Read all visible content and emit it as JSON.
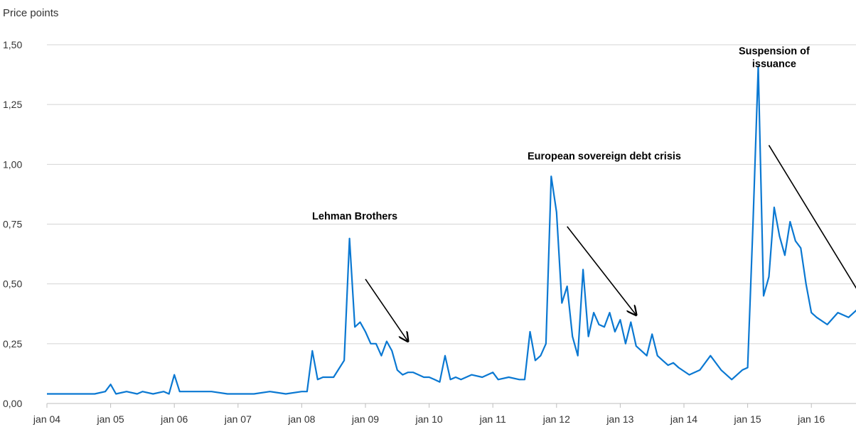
{
  "chart_data": {
    "type": "line",
    "ylabel": "Price points",
    "ylim": [
      0,
      1.5
    ],
    "yticks": [
      {
        "value": 0.0,
        "label": "0,00"
      },
      {
        "value": 0.25,
        "label": "0,25"
      },
      {
        "value": 0.5,
        "label": "0,50"
      },
      {
        "value": 0.75,
        "label": "0,75"
      },
      {
        "value": 1.0,
        "label": "1,00"
      },
      {
        "value": 1.25,
        "label": "1,25"
      },
      {
        "value": 1.5,
        "label": "1,50"
      }
    ],
    "xlim": [
      "2004-01",
      "2016-12"
    ],
    "xticks": [
      {
        "value": "2004-01",
        "label": "jan 04"
      },
      {
        "value": "2005-01",
        "label": "jan 05"
      },
      {
        "value": "2006-01",
        "label": "jan 06"
      },
      {
        "value": "2007-01",
        "label": "jan 07"
      },
      {
        "value": "2008-01",
        "label": "jan 08"
      },
      {
        "value": "2009-01",
        "label": "jan 09"
      },
      {
        "value": "2010-01",
        "label": "jan 10"
      },
      {
        "value": "2011-01",
        "label": "jan 11"
      },
      {
        "value": "2012-01",
        "label": "jan 12"
      },
      {
        "value": "2013-01",
        "label": "jan 13"
      },
      {
        "value": "2014-01",
        "label": "jan 14"
      },
      {
        "value": "2015-01",
        "label": "jan 15"
      },
      {
        "value": "2016-01",
        "label": "jan 16"
      }
    ],
    "grid": true,
    "line_color": "#0a78d2",
    "series": [
      {
        "x": [
          "2004-01",
          "2004-04",
          "2004-07",
          "2004-10",
          "2004-12",
          "2005-01",
          "2005-02",
          "2005-04",
          "2005-06",
          "2005-07",
          "2005-09",
          "2005-11",
          "2005-12",
          "2006-01",
          "2006-02",
          "2006-05",
          "2006-08",
          "2006-11",
          "2007-01",
          "2007-04",
          "2007-07",
          "2007-10",
          "2008-01",
          "2008-02",
          "2008-03",
          "2008-04",
          "2008-05",
          "2008-07",
          "2008-09",
          "2008-10",
          "2008-11",
          "2008-12",
          "2009-01",
          "2009-02",
          "2009-03",
          "2009-04",
          "2009-05",
          "2009-06",
          "2009-07",
          "2009-08",
          "2009-09",
          "2009-10",
          "2009-11",
          "2009-12",
          "2010-01",
          "2010-02",
          "2010-03",
          "2010-04",
          "2010-05",
          "2010-06",
          "2010-07",
          "2010-09",
          "2010-11",
          "2011-01",
          "2011-02",
          "2011-04",
          "2011-06",
          "2011-07",
          "2011-08",
          "2011-09",
          "2011-10",
          "2011-11",
          "2011-12",
          "2012-01",
          "2012-02",
          "2012-03",
          "2012-04",
          "2012-05",
          "2012-06",
          "2012-07",
          "2012-08",
          "2012-09",
          "2012-10",
          "2012-11",
          "2012-12",
          "2013-01",
          "2013-02",
          "2013-03",
          "2013-04",
          "2013-05",
          "2013-06",
          "2013-07",
          "2013-08",
          "2013-09",
          "2013-10",
          "2013-11",
          "2013-12",
          "2014-02",
          "2014-04",
          "2014-06",
          "2014-08",
          "2014-10",
          "2014-12",
          "2015-01",
          "2015-02",
          "2015-03",
          "2015-04",
          "2015-05",
          "2015-06",
          "2015-07",
          "2015-08",
          "2015-09",
          "2015-10",
          "2015-11",
          "2015-12",
          "2016-01",
          "2016-02",
          "2016-04",
          "2016-06",
          "2016-08",
          "2016-10",
          "2016-12"
        ],
        "values": [
          0.04,
          0.04,
          0.04,
          0.04,
          0.05,
          0.08,
          0.04,
          0.05,
          0.04,
          0.05,
          0.04,
          0.05,
          0.04,
          0.12,
          0.05,
          0.05,
          0.05,
          0.04,
          0.04,
          0.04,
          0.05,
          0.04,
          0.05,
          0.05,
          0.22,
          0.1,
          0.11,
          0.11,
          0.18,
          0.69,
          0.32,
          0.34,
          0.3,
          0.25,
          0.25,
          0.2,
          0.26,
          0.22,
          0.14,
          0.12,
          0.13,
          0.13,
          0.12,
          0.11,
          0.11,
          0.1,
          0.09,
          0.2,
          0.1,
          0.11,
          0.1,
          0.12,
          0.11,
          0.13,
          0.1,
          0.11,
          0.1,
          0.1,
          0.3,
          0.18,
          0.2,
          0.25,
          0.95,
          0.8,
          0.42,
          0.49,
          0.28,
          0.2,
          0.56,
          0.28,
          0.38,
          0.33,
          0.32,
          0.38,
          0.3,
          0.35,
          0.25,
          0.34,
          0.24,
          0.22,
          0.2,
          0.29,
          0.2,
          0.18,
          0.16,
          0.17,
          0.15,
          0.12,
          0.14,
          0.2,
          0.14,
          0.1,
          0.14,
          0.15,
          0.75,
          1.41,
          0.45,
          0.53,
          0.82,
          0.7,
          0.62,
          0.76,
          0.68,
          0.65,
          0.5,
          0.38,
          0.36,
          0.33,
          0.38,
          0.36,
          0.4,
          0.25
        ]
      }
    ],
    "annotations": [
      {
        "text": "Lehman Brothers",
        "x": "2008-11",
        "y": 0.77,
        "arrow_from": [
          "2009-01",
          0.52
        ],
        "arrow_to": [
          "2009-09",
          0.26
        ]
      },
      {
        "text": "European sovereign debt crisis",
        "x": "2012-10",
        "y": 1.02,
        "arrow_from": [
          "2012-03",
          0.74
        ],
        "arrow_to": [
          "2013-04",
          0.37
        ]
      },
      {
        "text": [
          "Suspension of",
          "issuance"
        ],
        "x": "2015-06",
        "y": 1.46,
        "arrow_from": [
          "2015-05",
          1.08
        ],
        "arrow_to": [
          "2016-12",
          0.39
        ]
      }
    ]
  }
}
